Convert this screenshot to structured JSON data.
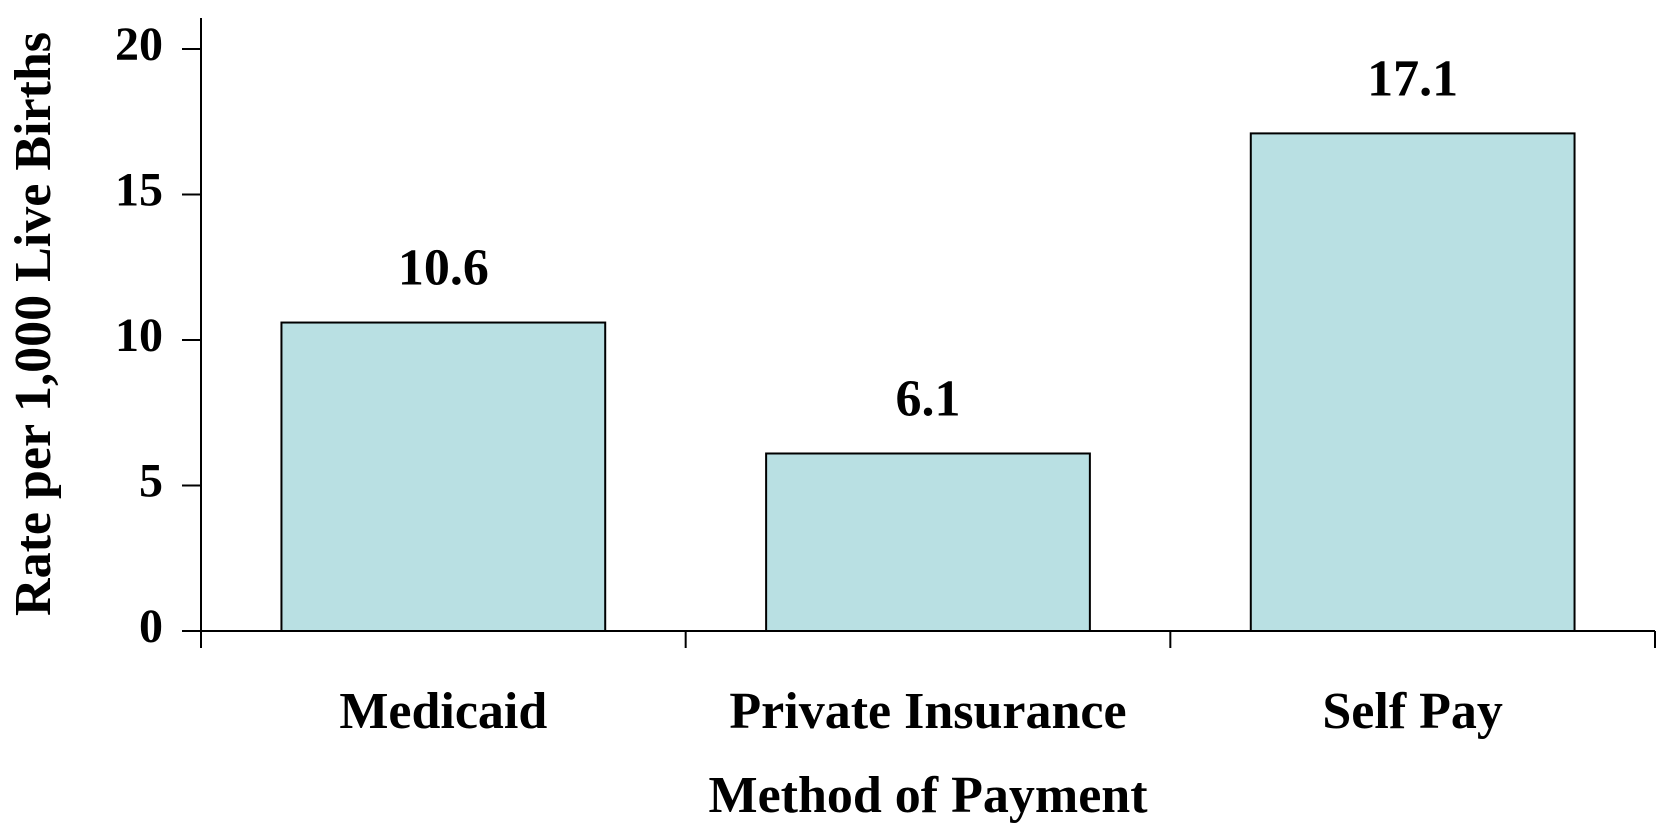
{
  "chart_data": {
    "type": "bar",
    "x_label": "Method of Payment",
    "y_label": "Rate per 1,000 Live Births",
    "categories": [
      "Medicaid",
      "Private Insurance",
      "Self Pay"
    ],
    "values": [
      10.6,
      6.1,
      17.1
    ],
    "color": "#b9e0e3",
    "ylim": [
      0,
      20
    ],
    "yticks": [
      0,
      5,
      10,
      15,
      20
    ],
    "grid": false
  }
}
